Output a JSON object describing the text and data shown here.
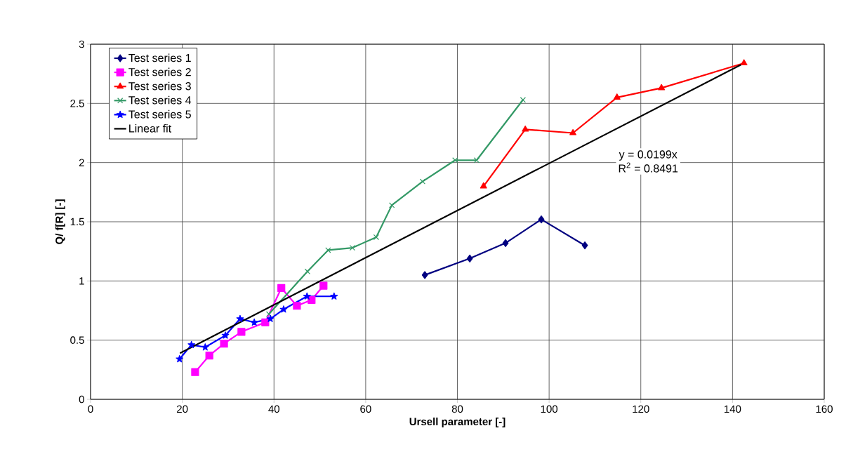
{
  "chart_data": {
    "type": "line",
    "xlabel": "Ursell parameter    [-]",
    "ylabel": "Q/ f[R]   [-]",
    "xlim": [
      0,
      160
    ],
    "xticks": [
      0,
      20,
      40,
      60,
      80,
      100,
      120,
      140,
      160
    ],
    "ylim": [
      0,
      3
    ],
    "yticks": [
      0,
      0.5,
      1,
      1.5,
      2,
      2.5,
      3
    ],
    "grid": true,
    "legend": "top left",
    "line_style": "solid",
    "annotations": [
      "y = 0.0199x",
      "R$^{2}$ = 0.8491"
    ],
    "series": [
      {
        "name": "Test series 1",
        "color": "#000080",
        "marker": "diamond",
        "x": [
          72.9,
          82.7,
          90.5,
          98.3,
          107.8
        ],
        "values": [
          1.05,
          1.19,
          1.32,
          1.52,
          1.3
        ]
      },
      {
        "name": "Test series 2",
        "color": "#ff00ff",
        "marker": "square",
        "x": [
          22.8,
          25.9,
          29.1,
          32.9,
          38.1,
          41.6,
          45.0,
          48.2,
          50.8
        ],
        "values": [
          0.23,
          0.37,
          0.47,
          0.57,
          0.65,
          0.94,
          0.79,
          0.84,
          0.96
        ]
      },
      {
        "name": "Test series 3",
        "color": "#ff0000",
        "marker": "triangle",
        "x": [
          85.7,
          94.8,
          105.2,
          114.8,
          124.5,
          142.5
        ],
        "values": [
          1.8,
          2.28,
          2.25,
          2.55,
          2.63,
          2.84
        ]
      },
      {
        "name": "Test series 4",
        "color": "#339966",
        "marker": "cross",
        "x": [
          38.9,
          47.3,
          51.8,
          57.1,
          62.3,
          65.7,
          72.4,
          79.5,
          84.2,
          94.3
        ],
        "values": [
          0.72,
          1.08,
          1.26,
          1.28,
          1.37,
          1.64,
          1.84,
          2.02,
          2.02,
          2.53
        ]
      },
      {
        "name": "Test series 5",
        "color": "#0000ff",
        "marker": "star",
        "x": [
          19.4,
          22.0,
          25.0,
          29.4,
          32.6,
          35.7,
          39.2,
          42.1,
          47.2,
          53.1
        ],
        "values": [
          0.34,
          0.46,
          0.44,
          0.54,
          0.68,
          0.65,
          0.68,
          0.76,
          0.87,
          0.87
        ]
      },
      {
        "name": "Linear fit",
        "color": "#000000",
        "marker": "none",
        "x": [
          19.5,
          142.5
        ],
        "values": [
          0.39,
          2.84
        ]
      }
    ]
  }
}
